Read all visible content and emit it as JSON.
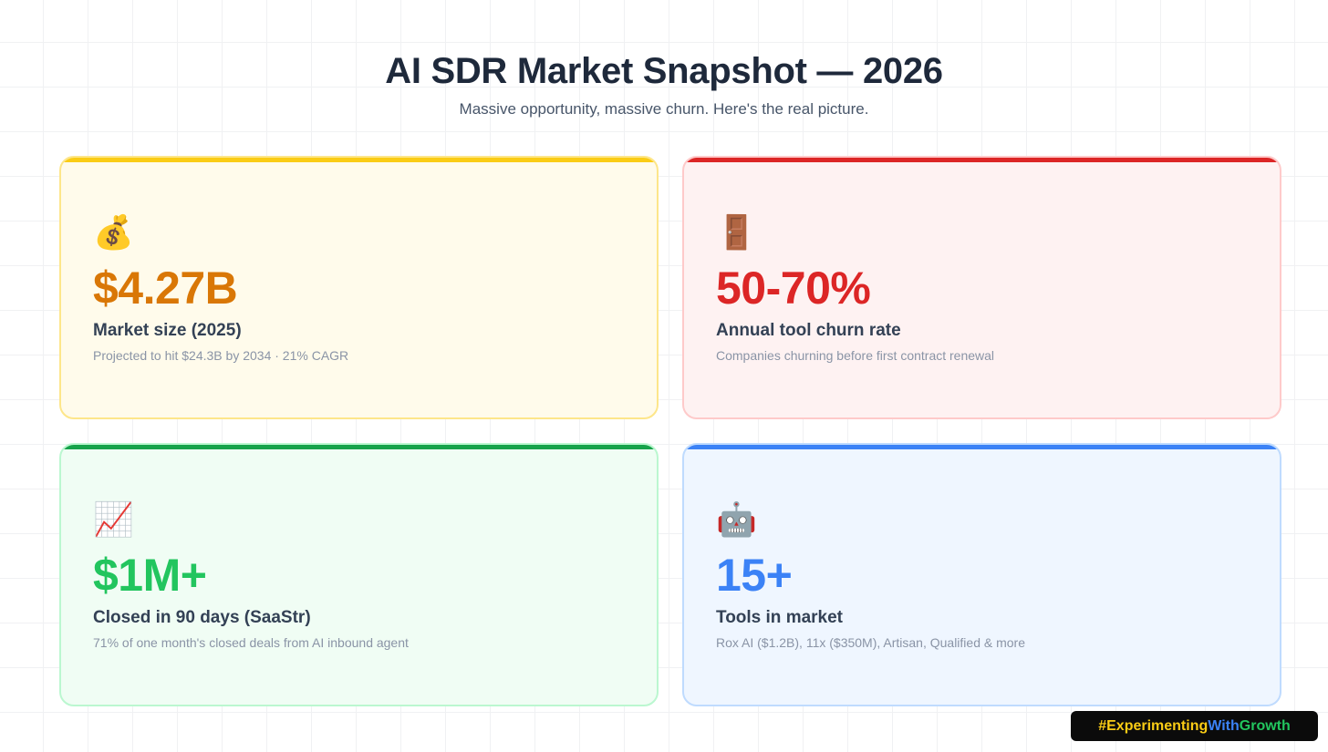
{
  "header": {
    "title": "AI SDR Market Snapshot — 2026",
    "subtitle": "Massive opportunity, massive churn. Here's the real picture."
  },
  "cards": [
    {
      "icon": "money-bag-icon",
      "emoji": "💰",
      "value": "$4.27B",
      "label": "Market size (2025)",
      "description": "Projected to hit $24.3B by 2034 · 21% CAGR",
      "accent": "#d97706"
    },
    {
      "icon": "door-icon",
      "emoji": "🚪",
      "value": "50-70%",
      "label": "Annual tool churn rate",
      "description": "Companies churning before first contract renewal",
      "accent": "#dc2626"
    },
    {
      "icon": "chart-increasing-icon",
      "emoji": "📈",
      "value": "$1M+",
      "label": "Closed in 90 days (SaaStr)",
      "description": "71% of one month's closed deals from AI inbound agent",
      "accent": "#22c55e"
    },
    {
      "icon": "robot-icon",
      "emoji": "🤖",
      "value": "15+",
      "label": "Tools in market",
      "description": "Rox AI ($1.2B), 11x ($350M), Artisan, Qualified & more",
      "accent": "#3b82f6"
    }
  ],
  "badge": {
    "part1": "#Experimenting",
    "part2": "With",
    "part3": "Growth",
    "colors": [
      "#facc15",
      "#3b82f6",
      "#22c55e"
    ]
  }
}
